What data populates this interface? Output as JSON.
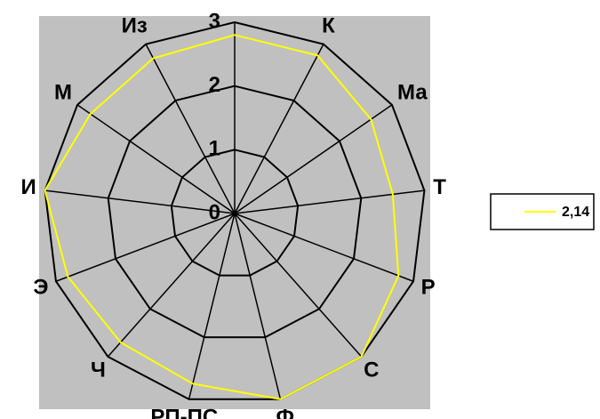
{
  "chart_data": {
    "type": "radar",
    "categories": [
      null,
      "К",
      "Ма",
      "Т",
      "Р",
      "С",
      "Ф",
      "РП-ПС",
      "Ч",
      "Э",
      "И",
      "М",
      "Из"
    ],
    "series": [
      {
        "name": "2,14",
        "color": "#ffff00",
        "values": [
          2.8,
          2.8,
          2.6,
          2.5,
          2.75,
          3,
          3,
          2.75,
          2.7,
          2.8,
          3,
          2.75,
          2.75
        ]
      }
    ],
    "ylim": [
      0,
      3
    ],
    "yticks": [
      0,
      1,
      2,
      3
    ],
    "grid": true
  }
}
